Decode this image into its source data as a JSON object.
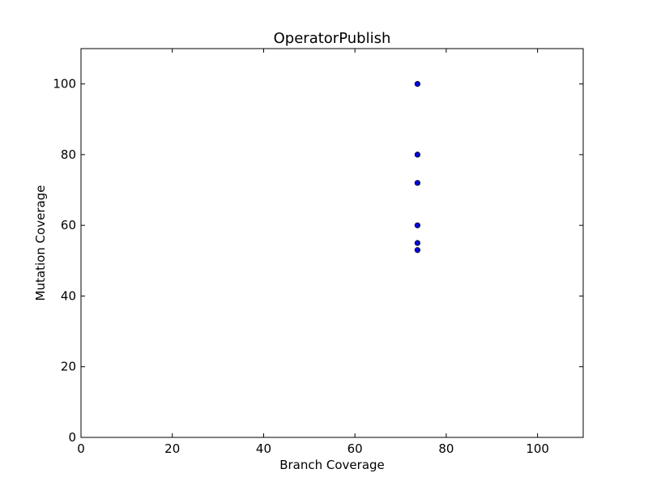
{
  "chart_data": {
    "type": "scatter",
    "title": "OperatorPublish",
    "xlabel": "Branch Coverage",
    "ylabel": "Mutation Coverage",
    "xlim": [
      0,
      110
    ],
    "ylim": [
      0,
      110
    ],
    "xticks": [
      0,
      20,
      40,
      60,
      80,
      100
    ],
    "yticks": [
      0,
      20,
      40,
      60,
      80,
      100
    ],
    "grid": false,
    "marker_color": "#0000ff",
    "series": [
      {
        "points": [
          {
            "x": 73.7,
            "y": 100
          },
          {
            "x": 73.7,
            "y": 80
          },
          {
            "x": 73.7,
            "y": 72
          },
          {
            "x": 73.7,
            "y": 60
          },
          {
            "x": 73.7,
            "y": 55
          },
          {
            "x": 73.7,
            "y": 53
          }
        ]
      }
    ]
  }
}
